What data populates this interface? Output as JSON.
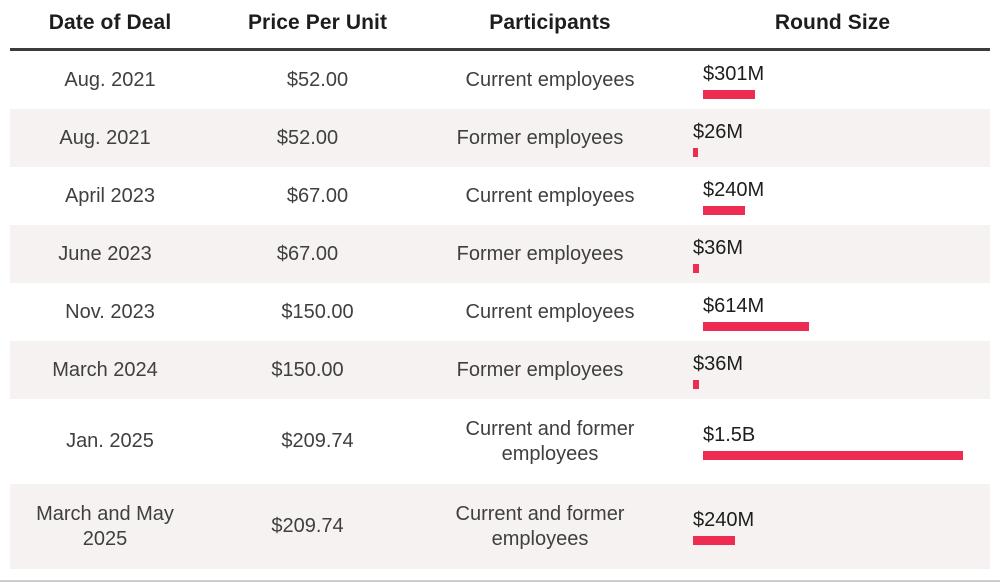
{
  "table": {
    "headers": [
      "Date of Deal",
      "Price Per Unit",
      "Participants",
      "Round Size"
    ]
  },
  "chart_data": {
    "type": "table",
    "title": "",
    "columns": [
      "Date of Deal",
      "Price Per Unit",
      "Participants",
      "Round Size"
    ],
    "rows": [
      {
        "date": "Aug. 2021",
        "price": "$52.00",
        "participants": "Current employees",
        "round_size_label": "$301M",
        "round_size_millions": 301
      },
      {
        "date": "Aug. 2021",
        "price": "$52.00",
        "participants": "Former employees",
        "round_size_label": "$26M",
        "round_size_millions": 26
      },
      {
        "date": "April 2023",
        "price": "$67.00",
        "participants": "Current employees",
        "round_size_label": "$240M",
        "round_size_millions": 240
      },
      {
        "date": "June 2023",
        "price": "$67.00",
        "participants": "Former employees",
        "round_size_label": "$36M",
        "round_size_millions": 36
      },
      {
        "date": "Nov. 2023",
        "price": "$150.00",
        "participants": "Current employees",
        "round_size_label": "$614M",
        "round_size_millions": 614
      },
      {
        "date": "March 2024",
        "price": "$150.00",
        "participants": "Former employees",
        "round_size_label": "$36M",
        "round_size_millions": 36
      },
      {
        "date": "Jan. 2025",
        "price": "$209.74",
        "participants": "Current and former employees",
        "round_size_label": "$1.5B",
        "round_size_millions": 1500
      },
      {
        "date": "March and May 2025",
        "price": "$209.74",
        "participants": "Current and former employees",
        "round_size_label": "$240M",
        "round_size_millions": 240
      }
    ],
    "bar_axis": {
      "min_millions": 0,
      "max_millions": 1500
    },
    "bar_color": "#ee2c52",
    "shaded_row_color": "#f6f2f1",
    "legend_position": "none",
    "grid": false
  }
}
